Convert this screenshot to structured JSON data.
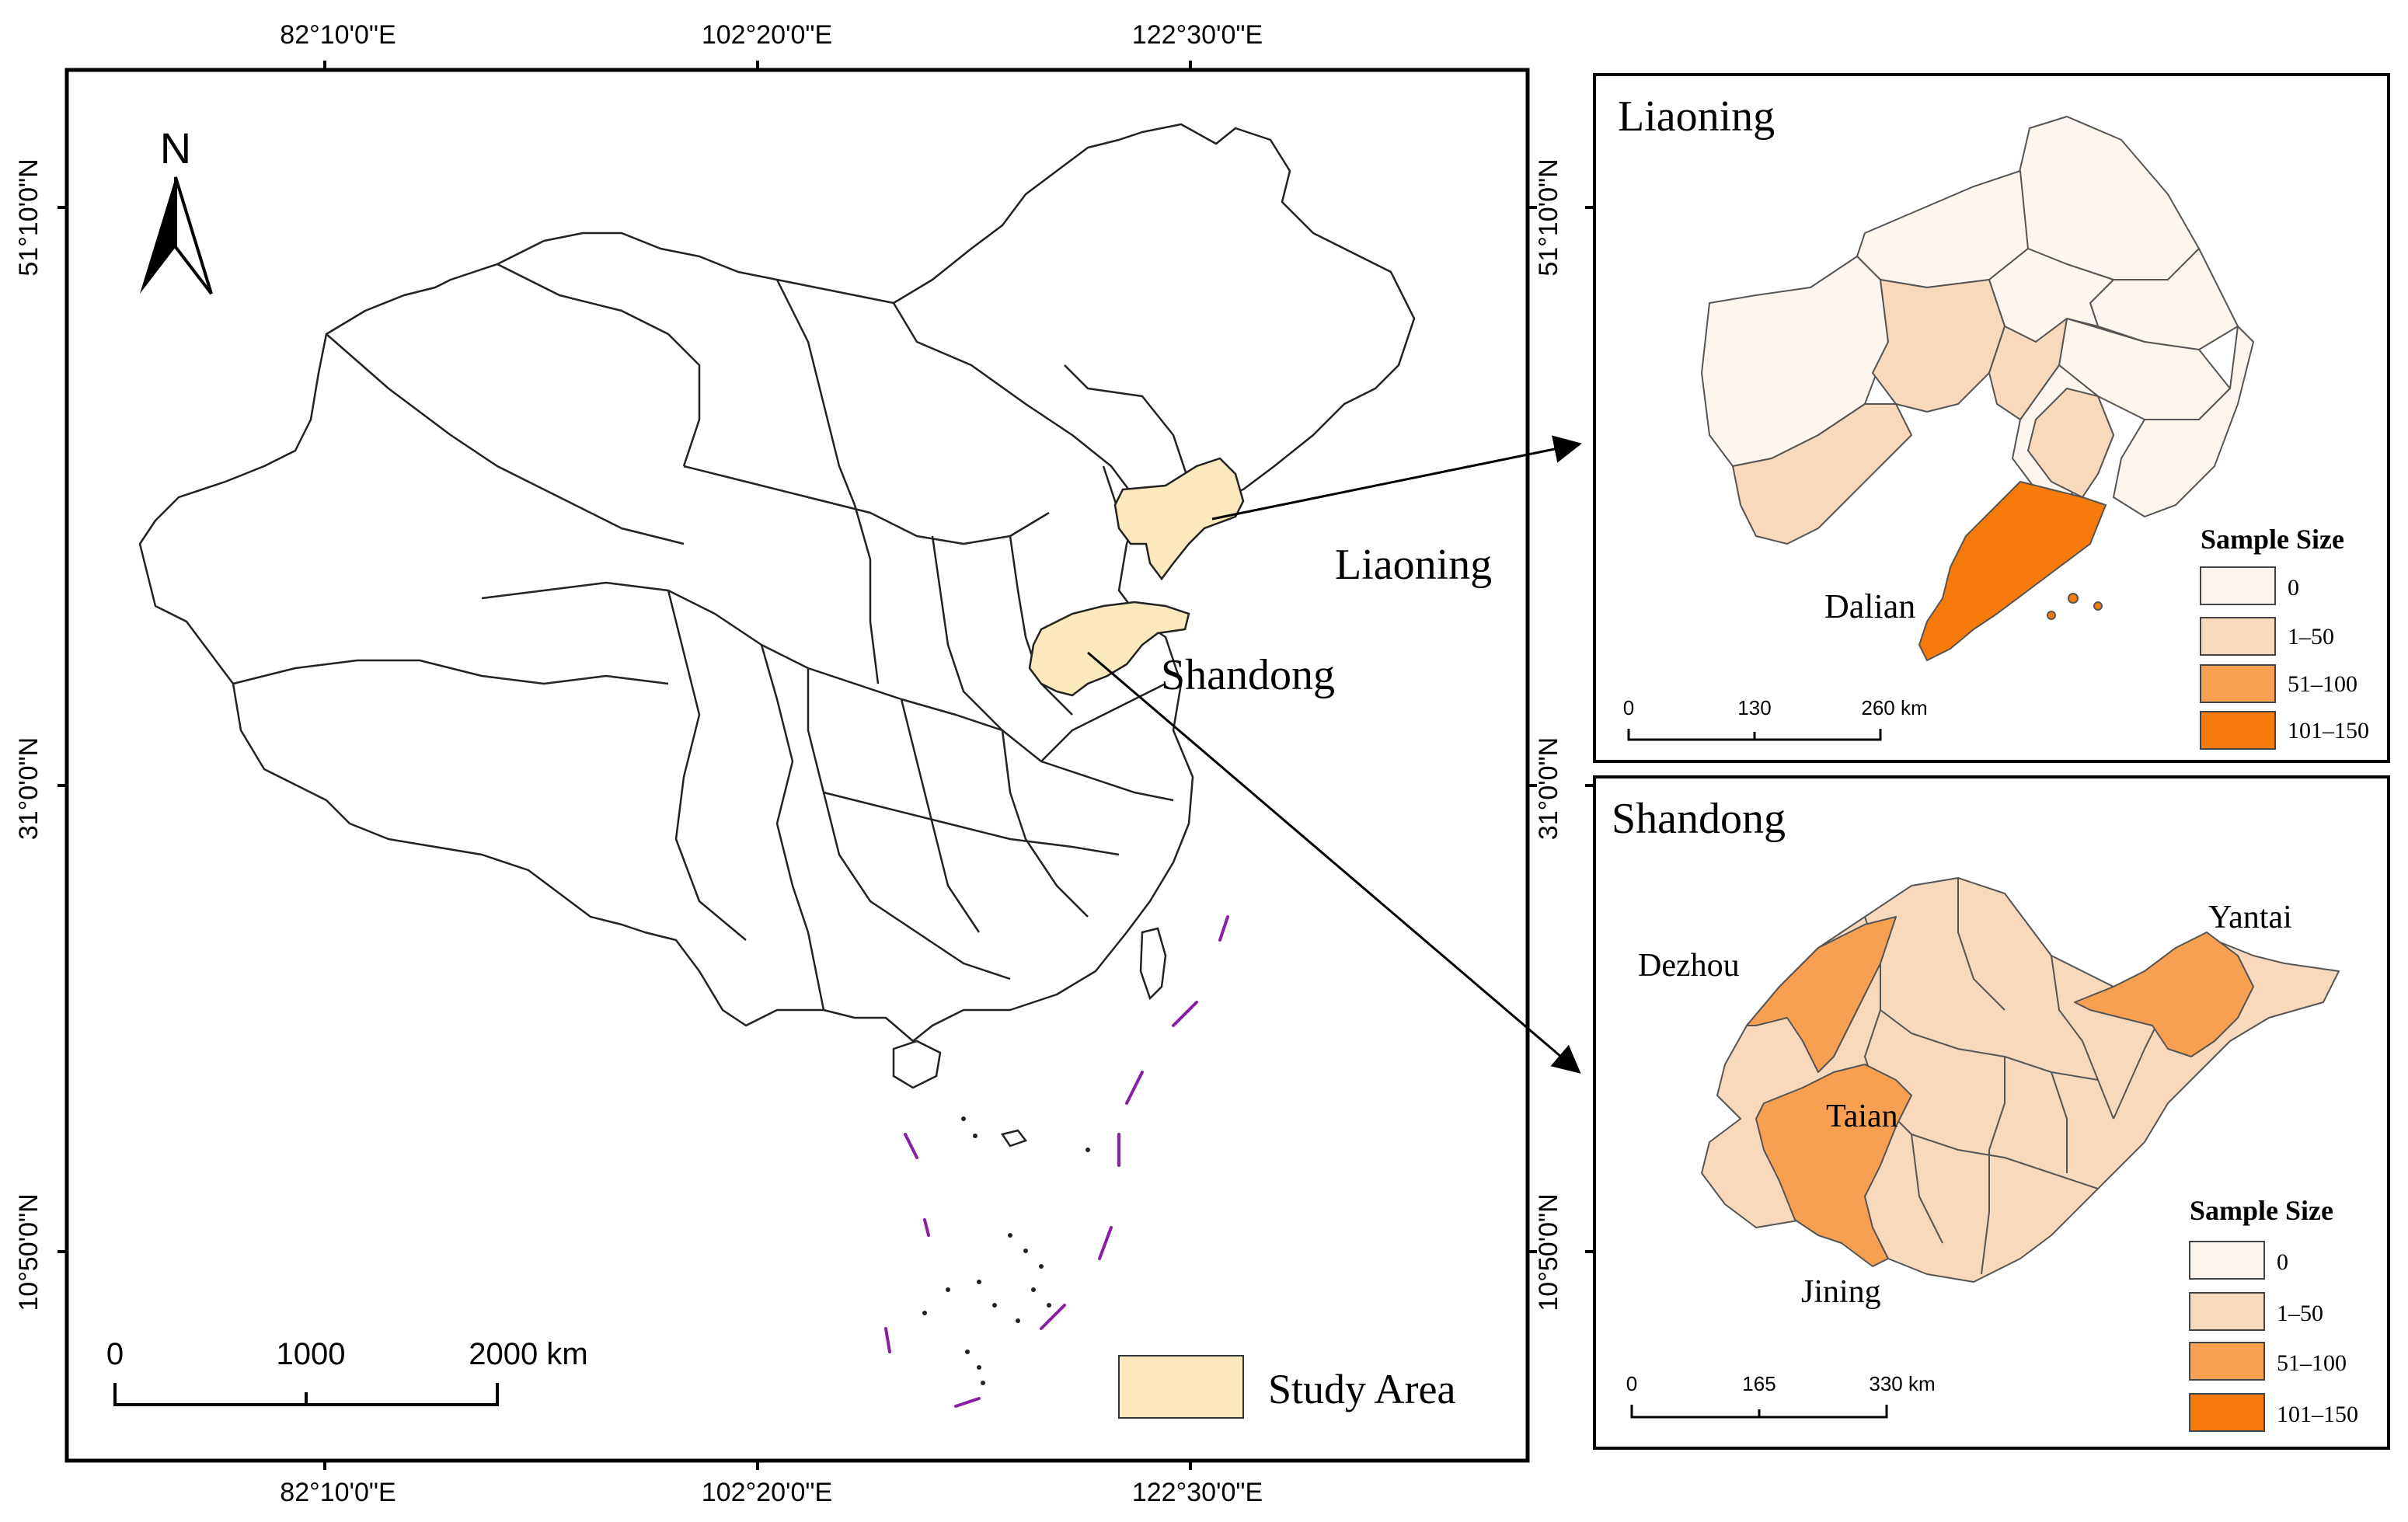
{
  "main_map": {
    "lon_ticks": [
      "82°10'0\"E",
      "102°20'0\"E",
      "122°30'0\"E"
    ],
    "lat_ticks": [
      "51°10'0\"N",
      "31°0'0\"N",
      "10°50'0\"N"
    ],
    "north_label": "N",
    "scale": {
      "ticks": [
        "0",
        "1000",
        "2000 km"
      ]
    },
    "province_labels": {
      "liaoning": "Liaoning",
      "shandong": "Shandong"
    },
    "legend": {
      "label": "Study Area",
      "color": "#fbe8bd"
    }
  },
  "liaoning_map": {
    "title": "Liaoning",
    "city_labels": {
      "dalian": "Dalian"
    },
    "scale": {
      "ticks": [
        "0",
        "130",
        "260 km"
      ]
    },
    "legend": {
      "title": "Sample Size",
      "items": [
        {
          "label": "0",
          "color": "#fdf6ee"
        },
        {
          "label": "1–50",
          "color": "#f9d9bb"
        },
        {
          "label": "51–100",
          "color": "#f7a052"
        },
        {
          "label": "101–150",
          "color": "#f77b0b"
        }
      ]
    }
  },
  "shandong_map": {
    "title": "Shandong",
    "city_labels": {
      "dezhou": "Dezhou",
      "yantai": "Yantai",
      "taian": "Taian",
      "jining": "Jining"
    },
    "scale": {
      "ticks": [
        "0",
        "165",
        "330 km"
      ]
    },
    "legend": {
      "title": "Sample Size",
      "items": [
        {
          "label": "0",
          "color": "#fdf6ee"
        },
        {
          "label": "1–50",
          "color": "#f9d9bb"
        },
        {
          "label": "51–100",
          "color": "#f7a052"
        },
        {
          "label": "101–150",
          "color": "#f77b0b"
        }
      ]
    }
  },
  "colors": {
    "frame": "#000000",
    "boundary": "#222222",
    "nine_dash": "#8a1fa3"
  }
}
